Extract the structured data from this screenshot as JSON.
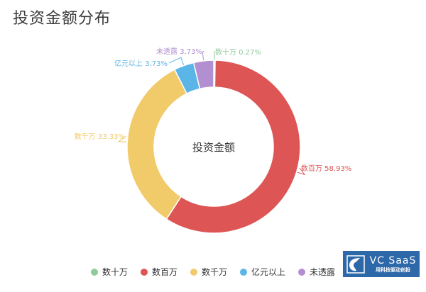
{
  "title": "投资金额分布",
  "chart_data": {
    "type": "pie",
    "donut": true,
    "center_label": "投资金额",
    "categories": [
      "数十万",
      "数百万",
      "数千万",
      "亿元以上",
      "未透露"
    ],
    "values": [
      0.27,
      58.93,
      33.33,
      3.73,
      3.73
    ],
    "slice_labels": [
      "数十万 0.27%",
      "数百万 58.93%",
      "数千万 33.33%",
      "亿元以上 3.73%",
      "未透露 3.73%"
    ],
    "colors": [
      "#8ecb9c",
      "#dd5555",
      "#f1ca6a",
      "#5bb5e6",
      "#b28fd0"
    ],
    "legend": {
      "position": "bottom",
      "items": [
        "数十万",
        "数百万",
        "数千万",
        "亿元以上",
        "未透露"
      ]
    }
  },
  "logo": {
    "main": "VC SaaS",
    "sub": "用科技驱动创投"
  }
}
